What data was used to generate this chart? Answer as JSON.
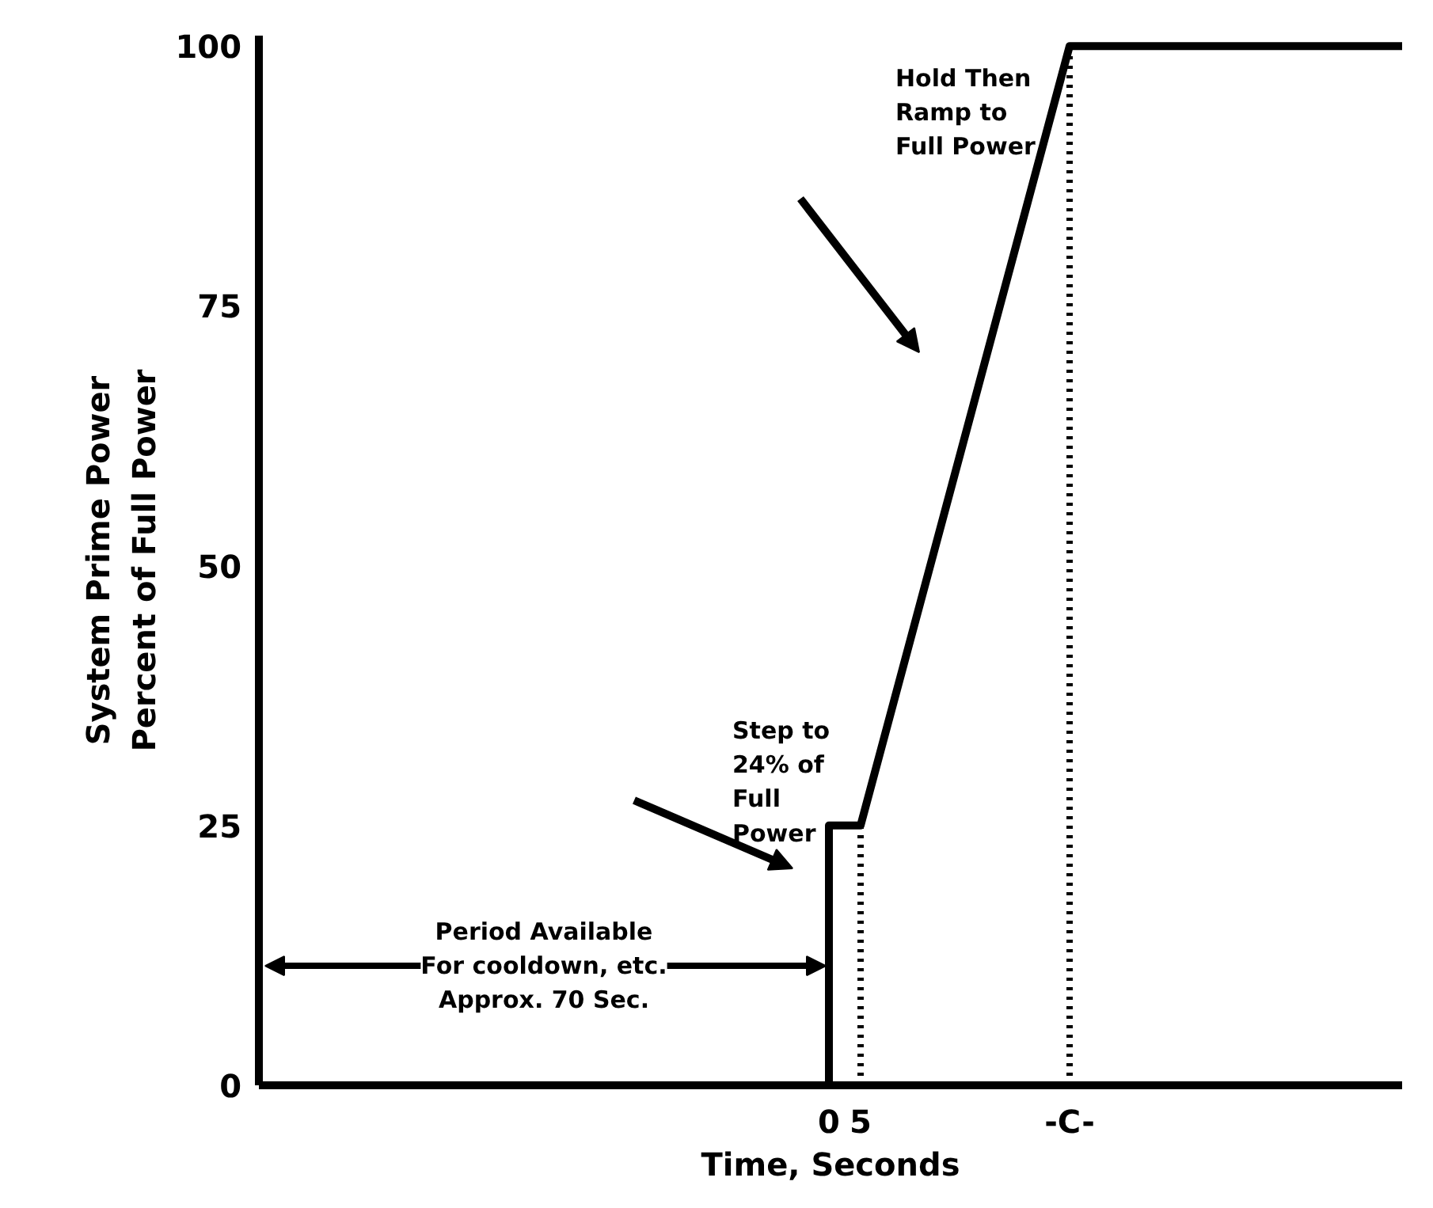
{
  "chart_data": {
    "type": "line",
    "xlabel": "Time, Seconds",
    "ylabel": "System Prime Power\nPercent of Full Power",
    "x": [
      -90,
      0,
      0,
      5,
      38,
      90.5
    ],
    "values": [
      0,
      0,
      25,
      25,
      100,
      100
    ],
    "color": "#000000",
    "xlim": [
      -90,
      90.5
    ],
    "ylim": [
      0,
      101
    ],
    "xticks": [
      0,
      5,
      {
        "value": 38,
        "label": "-C-"
      }
    ],
    "yticks": [
      0,
      25,
      50,
      75,
      100
    ],
    "ref_lines": [
      {
        "axis": "x",
        "value": 5,
        "label": null,
        "line_style": "dotted"
      },
      {
        "axis": "x",
        "value": 38,
        "label": null,
        "line_style": "dotted"
      }
    ],
    "annotations": [
      "Hold Then\nRamp to\nFull Power",
      "Step to\n24% of\nFull\nPower",
      "Period Available\nFor cooldown, etc.\nApprox. 70 Sec."
    ],
    "grid": false,
    "marker": "none",
    "line_style": "solid"
  }
}
